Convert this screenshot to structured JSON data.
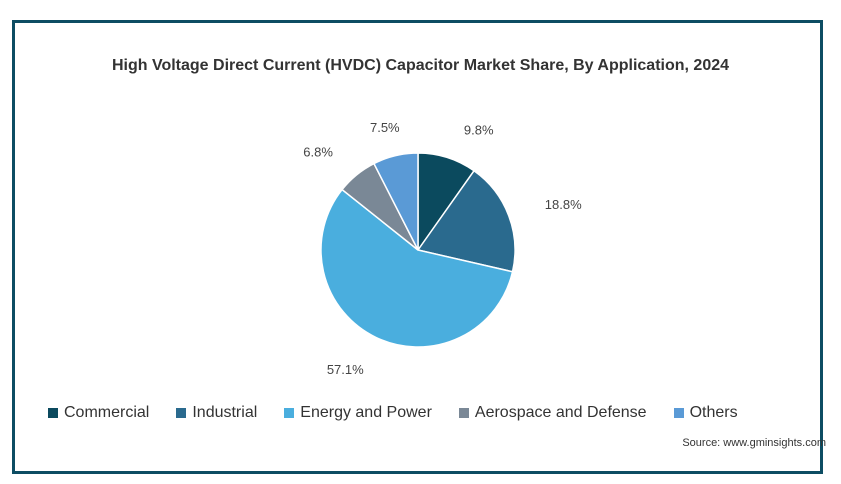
{
  "chart_data": {
    "type": "pie",
    "title": "High Voltage Direct Current (HVDC) Capacitor Market Share, By Application, 2024",
    "categories": [
      "Commercial",
      "Industrial",
      "Energy and Power",
      "Aerospace and Defense",
      "Others"
    ],
    "values": [
      9.8,
      18.8,
      57.1,
      6.8,
      7.5
    ],
    "labels": [
      "9.8%",
      "18.8%",
      "57.1%",
      "6.8%",
      "7.5%"
    ],
    "colors": [
      "#0b4a5e",
      "#2a6a8e",
      "#4aaede",
      "#7a8896",
      "#5a9ad6"
    ],
    "legend_position": "bottom"
  },
  "source": "Source: www.gminsights.com"
}
